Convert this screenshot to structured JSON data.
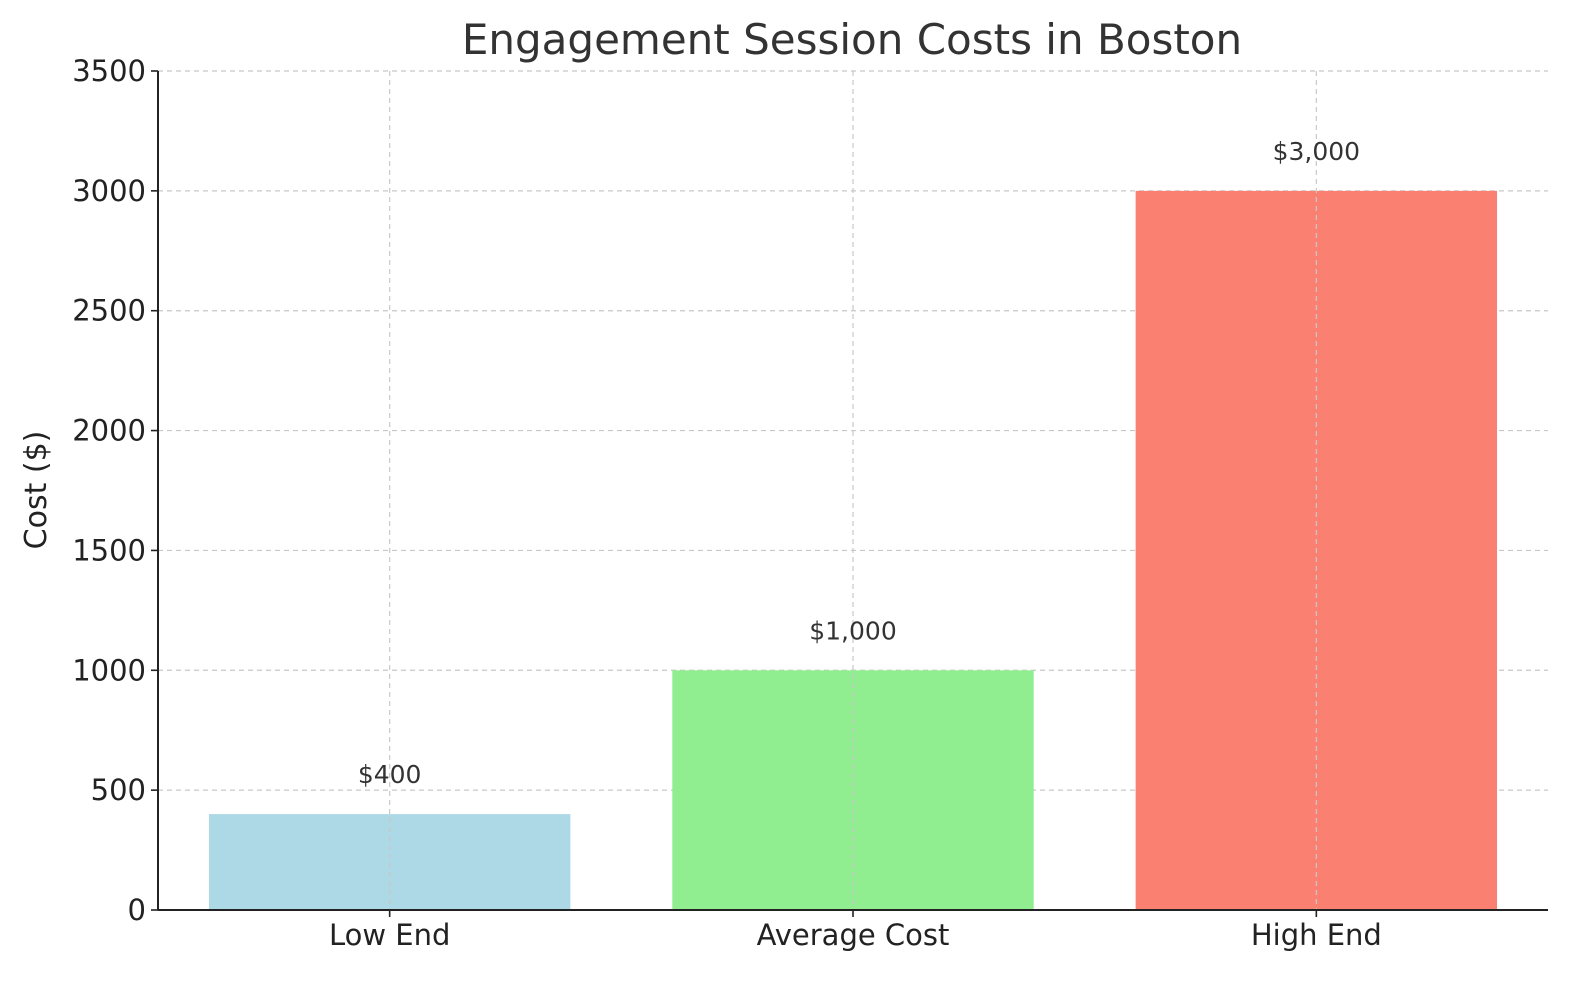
{
  "chart_data": {
    "type": "bar",
    "title": "Engagement Session Costs in Boston",
    "xlabel": "",
    "ylabel": "Cost ($)",
    "categories": [
      "Low End",
      "Average Cost",
      "High End"
    ],
    "values": [
      400,
      1000,
      3000
    ],
    "value_labels": [
      "$400",
      "$1,000",
      "$3,000"
    ],
    "colors": [
      "#add8e6",
      "#90ee90",
      "#fa8072"
    ],
    "ylim": [
      0,
      3500
    ],
    "yticks": [
      0,
      500,
      1000,
      1500,
      2000,
      2500,
      3000,
      3500
    ],
    "ytick_labels": [
      "0",
      "500",
      "1000",
      "1500",
      "2000",
      "2500",
      "3000",
      "3500"
    ],
    "grid": true,
    "legend": "none"
  }
}
